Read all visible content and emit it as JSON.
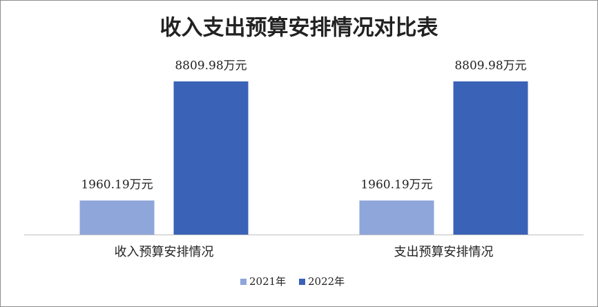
{
  "chart_data": {
    "type": "bar",
    "title": "收入支出预算安排情况对比表",
    "categories": [
      "收入预算安排情况",
      "支出预算安排情况"
    ],
    "series": [
      {
        "name": "2021年",
        "color": "#8ea6d9",
        "values": [
          1960.19,
          1960.19
        ],
        "value_labels": [
          "1960.19万元",
          "1960.19万元"
        ]
      },
      {
        "name": "2022年",
        "color": "#3a62b6",
        "values": [
          8809.98,
          8809.98
        ],
        "value_labels": [
          "8809.98万元",
          "8809.98万元"
        ]
      }
    ],
    "legend": "bottom"
  }
}
